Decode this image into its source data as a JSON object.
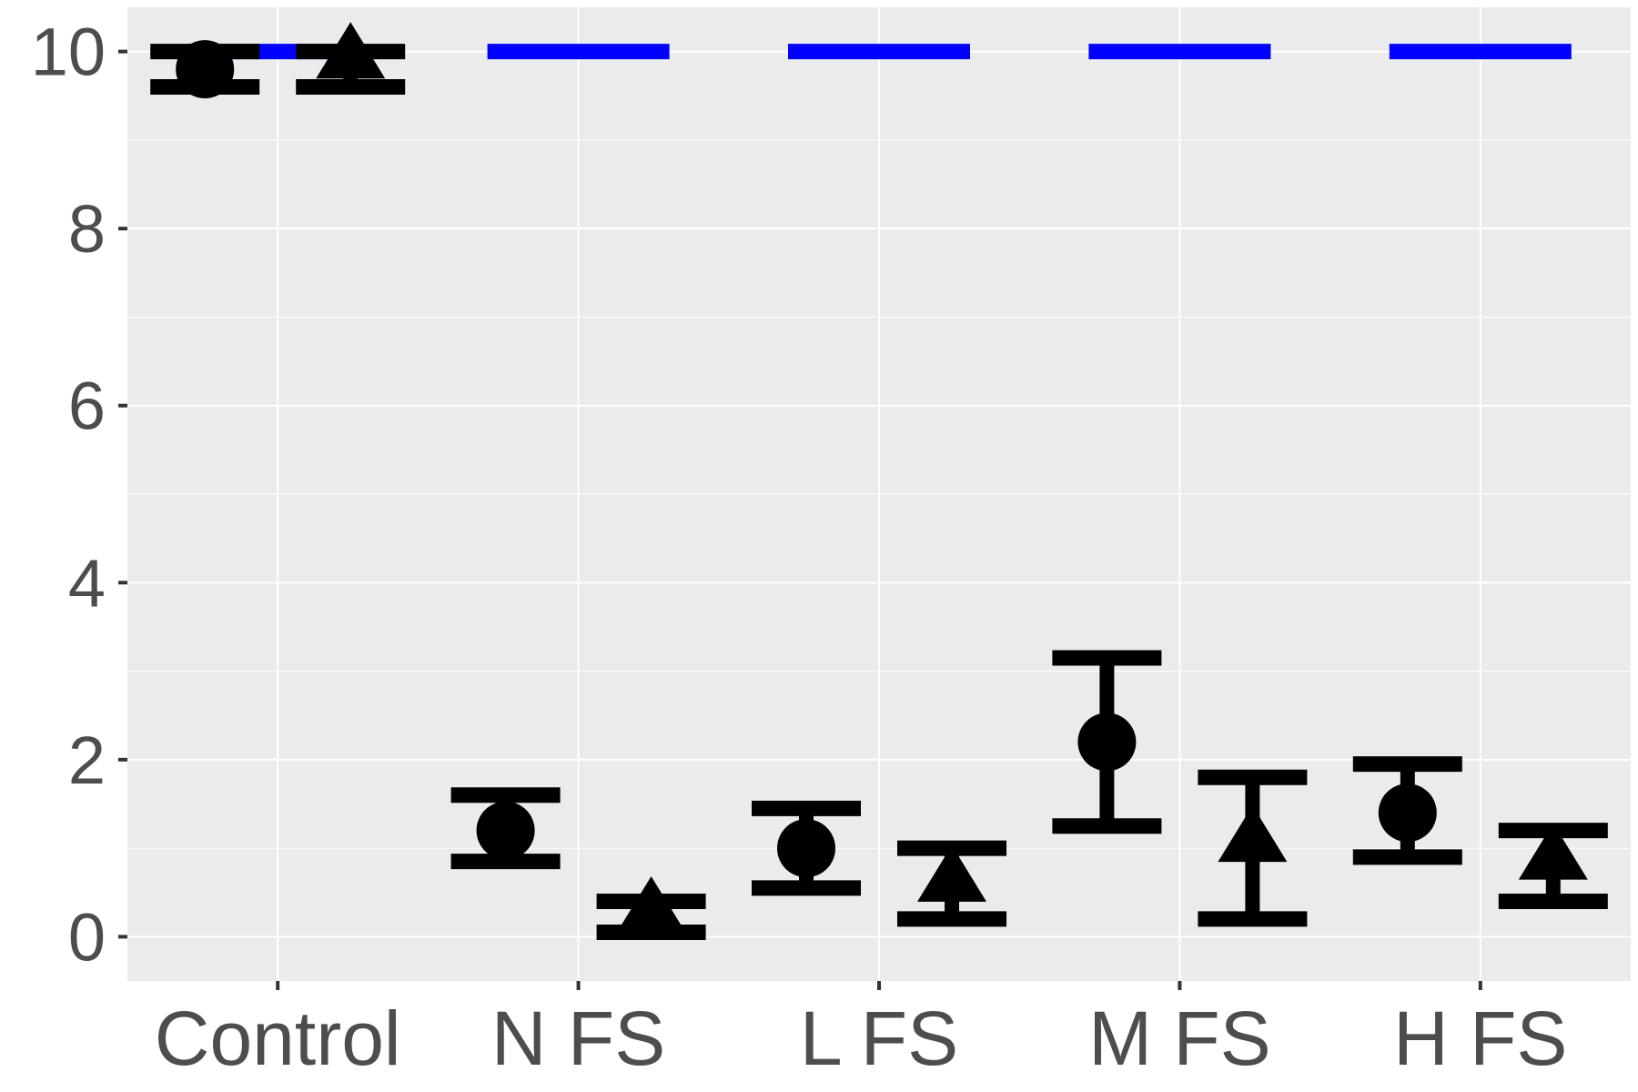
{
  "chart_data": {
    "type": "scatter",
    "categories": [
      "Control",
      "N FS",
      "L FS",
      "M FS",
      "H FS"
    ],
    "ylim": [
      -0.5,
      10.5
    ],
    "yticks": [
      0,
      2,
      4,
      6,
      8,
      10
    ],
    "ytick_labels": [
      "0",
      "2",
      "4",
      "6",
      "8",
      "10"
    ],
    "grid": true,
    "legend": "none",
    "xlabel": "",
    "ylabel": "",
    "title": "",
    "reference_line": {
      "y": 10,
      "color": "#0000ff"
    },
    "series": [
      {
        "marker": "circle",
        "values": [
          9.8,
          1.2,
          1.0,
          2.2,
          1.4
        ],
        "err_low": [
          9.6,
          0.85,
          0.55,
          1.25,
          0.9
        ],
        "err_high": [
          10.0,
          1.6,
          1.45,
          3.15,
          1.95
        ]
      },
      {
        "marker": "triangle",
        "values": [
          9.95,
          0.3,
          0.65,
          1.1,
          0.9
        ],
        "err_low": [
          9.6,
          0.05,
          0.2,
          0.2,
          0.4
        ],
        "err_high": [
          10.0,
          0.4,
          1.0,
          1.8,
          1.2
        ]
      }
    ],
    "colors": {
      "panel": "#ebebeb",
      "grid": "#ffffff",
      "marker": "#000000",
      "text": "#4d4d4d"
    }
  }
}
